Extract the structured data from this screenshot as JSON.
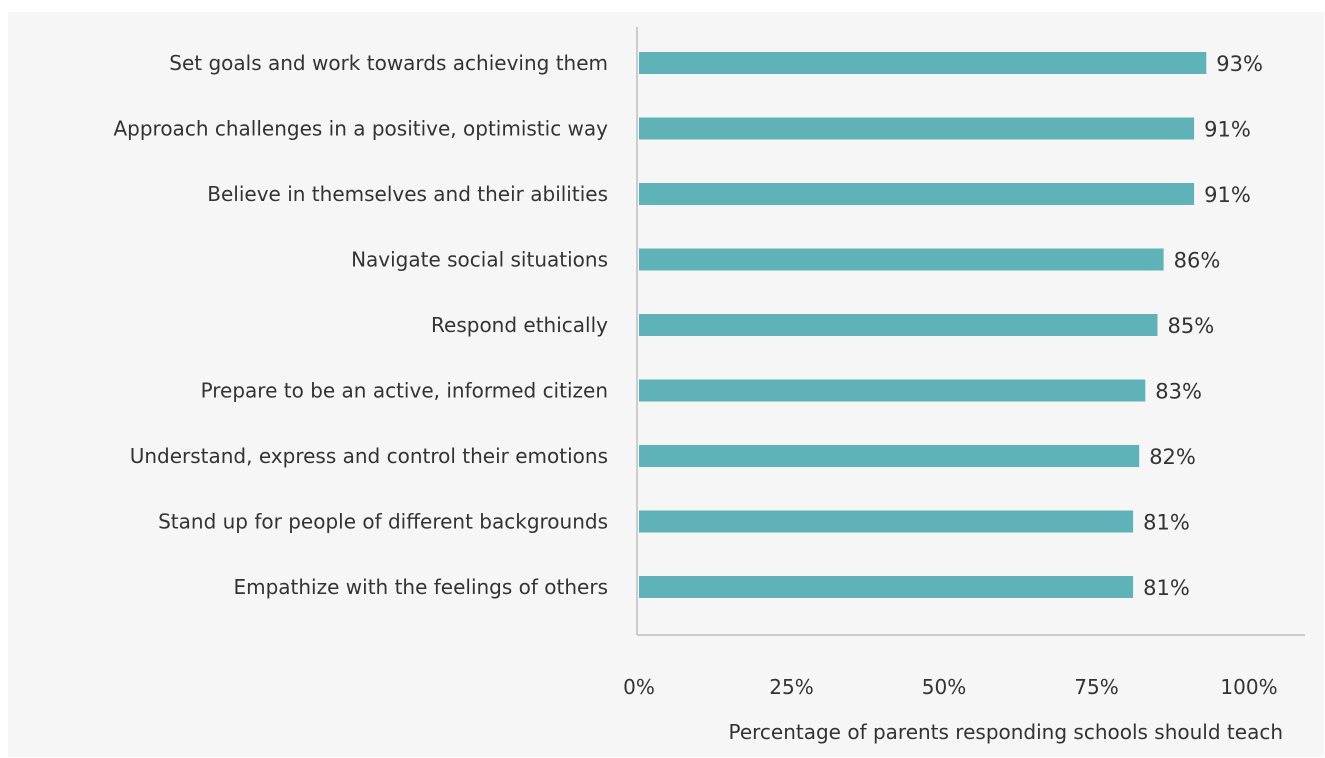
{
  "chart_data": {
    "type": "bar",
    "orientation": "horizontal",
    "categories": [
      "Set goals and work towards achieving them",
      "Approach challenges in a positive, optimistic way",
      "Believe in themselves and their abilities",
      "Navigate social situations",
      "Respond ethically",
      "Prepare to be an active, informed citizen",
      "Understand, express and control their emotions",
      "Stand up for people of different backgrounds",
      "Empathize with the feelings of others"
    ],
    "values": [
      93,
      91,
      91,
      86,
      85,
      83,
      82,
      81,
      81
    ],
    "data_labels": [
      "93%",
      "91%",
      "91%",
      "86%",
      "85%",
      "83%",
      "82%",
      "81%",
      "81%"
    ],
    "xticks": [
      0,
      25,
      50,
      75,
      100
    ],
    "xtick_labels": [
      "0%",
      "25%",
      "50%",
      "75%",
      "100%"
    ],
    "xlim": [
      0,
      100
    ],
    "xlabel": "Percentage of parents responding schools should teach",
    "ylabel": "",
    "title": "",
    "grid": false,
    "colors": {
      "bar": "#5fb3b8",
      "axis": "#cccccc",
      "background": "#f6f6f6",
      "text": "#333333"
    }
  }
}
